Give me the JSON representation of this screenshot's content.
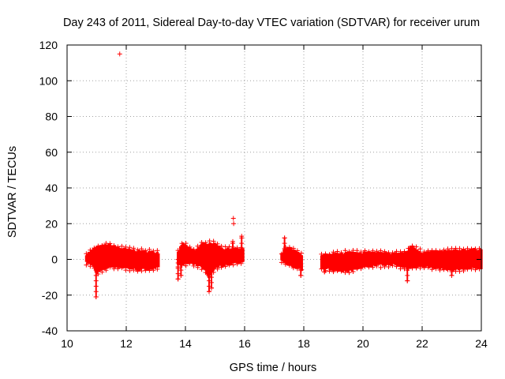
{
  "chart_data": {
    "type": "scatter",
    "title": "Day 243 of 2011, Sidereal Day-to-day VTEC variation (SDTVAR) for receiver urum",
    "xlabel": "GPS time / hours",
    "ylabel": "SDTVAR / TECUs",
    "xlim": [
      10,
      24
    ],
    "ylim": [
      -40,
      120
    ],
    "xticks": [
      10,
      12,
      14,
      16,
      18,
      20,
      22,
      24
    ],
    "yticks": [
      -40,
      -20,
      0,
      20,
      40,
      60,
      80,
      100,
      120
    ],
    "grid": true,
    "marker": "+",
    "color": "#ff0000",
    "segments": [
      {
        "t_start": 10.65,
        "t_end": 13.1,
        "upper": [
          [
            10.65,
            3
          ],
          [
            11.0,
            7
          ],
          [
            11.4,
            8.5
          ],
          [
            11.9,
            6
          ],
          [
            12.4,
            5
          ],
          [
            13.1,
            4
          ]
        ],
        "lower": [
          [
            10.65,
            -2
          ],
          [
            10.9,
            -4
          ],
          [
            11.0,
            -8
          ],
          [
            11.2,
            -6
          ],
          [
            11.5,
            -4
          ],
          [
            12.0,
            -5
          ],
          [
            12.5,
            -6
          ],
          [
            13.1,
            -5
          ]
        ]
      },
      {
        "t_start": 13.75,
        "t_end": 15.95,
        "upper": [
          [
            13.75,
            4
          ],
          [
            13.9,
            9
          ],
          [
            14.3,
            5
          ],
          [
            14.6,
            9
          ],
          [
            14.9,
            9.5
          ],
          [
            15.3,
            6
          ],
          [
            15.9,
            6
          ]
        ],
        "lower": [
          [
            13.75,
            -3
          ],
          [
            14.2,
            -2
          ],
          [
            14.6,
            -5
          ],
          [
            14.8,
            -10
          ],
          [
            15.0,
            -5
          ],
          [
            15.4,
            -3
          ],
          [
            15.9,
            -2
          ]
        ]
      },
      {
        "t_start": 17.25,
        "t_end": 17.95,
        "upper": [
          [
            17.25,
            3
          ],
          [
            17.4,
            7
          ],
          [
            17.6,
            6
          ],
          [
            17.95,
            2
          ]
        ],
        "lower": [
          [
            17.25,
            -1
          ],
          [
            17.5,
            -3
          ],
          [
            17.95,
            -6
          ]
        ]
      },
      {
        "t_start": 18.6,
        "t_end": 24.0,
        "upper": [
          [
            18.6,
            2
          ],
          [
            19.0,
            3
          ],
          [
            19.5,
            4
          ],
          [
            20.0,
            4
          ],
          [
            21.0,
            3.5
          ],
          [
            21.5,
            4
          ],
          [
            21.6,
            8
          ],
          [
            22.0,
            4
          ],
          [
            23.0,
            5
          ],
          [
            24.0,
            6
          ]
        ],
        "lower": [
          [
            18.6,
            -5
          ],
          [
            19.0,
            -6
          ],
          [
            19.5,
            -7
          ],
          [
            20.0,
            -4
          ],
          [
            21.0,
            -3
          ],
          [
            21.5,
            -5
          ],
          [
            22.0,
            -4
          ],
          [
            23.0,
            -6
          ],
          [
            24.0,
            -5
          ]
        ]
      }
    ],
    "spikes": [
      {
        "x": 10.98,
        "y_min": -21,
        "y_max": 0
      },
      {
        "x": 13.75,
        "y_min": -11,
        "y_max": 0
      },
      {
        "x": 13.85,
        "y_min": -9,
        "y_max": 0
      },
      {
        "x": 14.8,
        "y_min": -18,
        "y_max": 0
      },
      {
        "x": 14.88,
        "y_min": -16,
        "y_max": 0
      },
      {
        "x": 15.6,
        "y_min": 0,
        "y_max": 10
      },
      {
        "x": 15.9,
        "y_min": 0,
        "y_max": 13
      },
      {
        "x": 17.35,
        "y_min": 0,
        "y_max": 12
      },
      {
        "x": 17.9,
        "y_min": -9,
        "y_max": 0
      },
      {
        "x": 18.7,
        "y_min": -7,
        "y_max": 0
      },
      {
        "x": 21.5,
        "y_min": -12,
        "y_max": 0
      },
      {
        "x": 23.0,
        "y_min": -9,
        "y_max": 0
      }
    ],
    "outliers": [
      {
        "x": 11.78,
        "y": 115
      },
      {
        "x": 15.62,
        "y": 23
      },
      {
        "x": 15.63,
        "y": 20
      }
    ]
  }
}
